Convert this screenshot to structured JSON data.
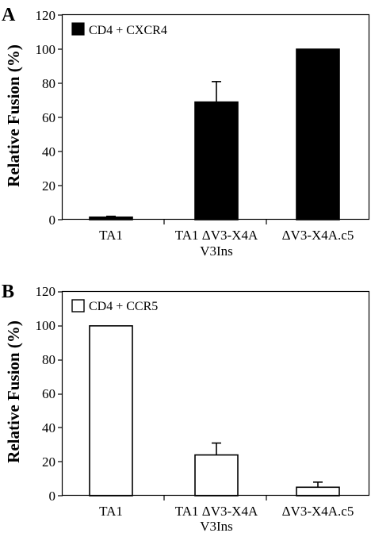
{
  "chart_data": [
    {
      "panel": "A",
      "type": "bar",
      "ylabel": "Relative Fusion (%)",
      "ylim": [
        0,
        120
      ],
      "yticks": [
        "0",
        "20",
        "40",
        "60",
        "80",
        "100",
        "120"
      ],
      "categories": [
        {
          "line1": "TA1",
          "line2": ""
        },
        {
          "line1": "TA1 ΔV3-X4A",
          "line2": "V3Ins"
        },
        {
          "line1": "ΔV3-X4A.c5",
          "line2": ""
        }
      ],
      "series": [
        {
          "name": "CD4 + CXCR4",
          "fill": "#000000",
          "values": [
            1.5,
            69,
            100
          ],
          "errors": [
            0.5,
            12,
            0
          ]
        }
      ],
      "legend": "top-left",
      "grid": false
    },
    {
      "panel": "B",
      "type": "bar",
      "ylabel": "Relative Fusion (%)",
      "ylim": [
        0,
        120
      ],
      "yticks": [
        "0",
        "20",
        "40",
        "60",
        "80",
        "100",
        "120"
      ],
      "categories": [
        {
          "line1": "TA1",
          "line2": ""
        },
        {
          "line1": "TA1 ΔV3-X4A",
          "line2": "V3Ins"
        },
        {
          "line1": "ΔV3-X4A.c5",
          "line2": ""
        }
      ],
      "series": [
        {
          "name": "CD4 + CCR5",
          "fill": "#ffffff",
          "values": [
            100,
            24,
            5
          ],
          "errors": [
            0,
            7,
            3
          ]
        }
      ],
      "legend": "top-left",
      "grid": false
    }
  ]
}
